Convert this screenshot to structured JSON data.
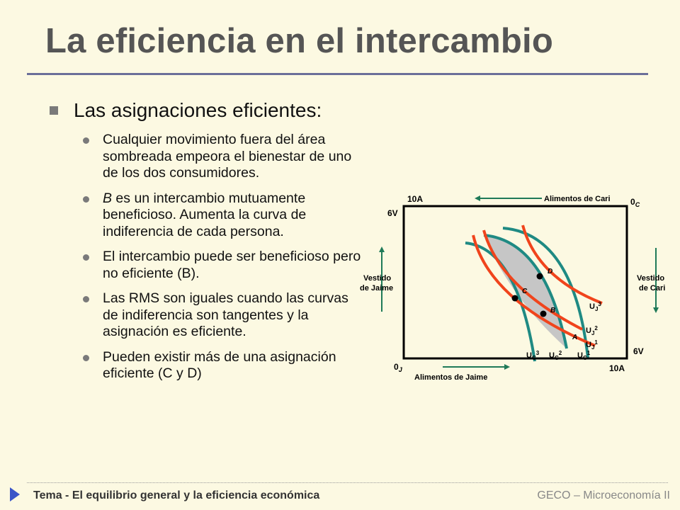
{
  "title": "La eficiencia en el intercambio",
  "heading": "Las asignaciones eficientes:",
  "bullets": [
    {
      "pre": "",
      "em": "",
      "post": "Cualquier movimiento fuera del área sombreada empeora el bienestar de uno de los dos consumidores."
    },
    {
      "pre": "",
      "em": "B",
      "post": " es un intercambio mutuamente beneficioso. Aumenta la curva de indiferencia de cada persona."
    },
    {
      "pre": "",
      "em": "",
      "post": "El intercambio puede ser beneficioso pero no eficiente (B)."
    },
    {
      "pre": "",
      "em": "",
      "post": "Las RMS son iguales cuando las curvas de indiferencia son tangentes y la asignación es eficiente."
    },
    {
      "pre": "",
      "em": "",
      "post": "Pueden existir más de una asignación eficiente (C y D)"
    }
  ],
  "diagram": {
    "top_left_axis": "10A",
    "top_left_v": "6V",
    "origin_cari": "0",
    "origin_cari_sub": "C",
    "origin_jaime": "0",
    "origin_jaime_sub": "J",
    "bottom_right_v": "6V",
    "bottom_right_a": "10A",
    "alimentos_cari": "Alimentos de Cari",
    "alimentos_jaime": "Alimentos de Jaime",
    "vestido_jaime_1": "Vestido",
    "vestido_jaime_2": "de Jaime",
    "vestido_cari_1": "Vestido",
    "vestido_cari_2": "de Cari",
    "points": {
      "D": "D",
      "C": "C",
      "B": "B",
      "A": "A"
    },
    "uj": [
      {
        "base": "U",
        "sub": "J",
        "sup": "3"
      },
      {
        "base": "U",
        "sub": "J",
        "sup": "2"
      },
      {
        "base": "U",
        "sub": "J",
        "sup": "1"
      }
    ],
    "uc": [
      {
        "base": "U",
        "sub": "C",
        "sup": "3"
      },
      {
        "base": "U",
        "sub": "C",
        "sup": "2"
      },
      {
        "base": "U",
        "sub": "C",
        "sup": "1"
      }
    ],
    "colors": {
      "jaime_curves": "#f0441c",
      "cari_curves": "#1f8a83",
      "shade": "#c6c6c6",
      "arrows": "#1f7a58",
      "box": "#000000"
    }
  },
  "footer": {
    "left": "Tema  - El equilibrio general y la eficiencia económica",
    "right": "GECO – Microeconomía II"
  }
}
